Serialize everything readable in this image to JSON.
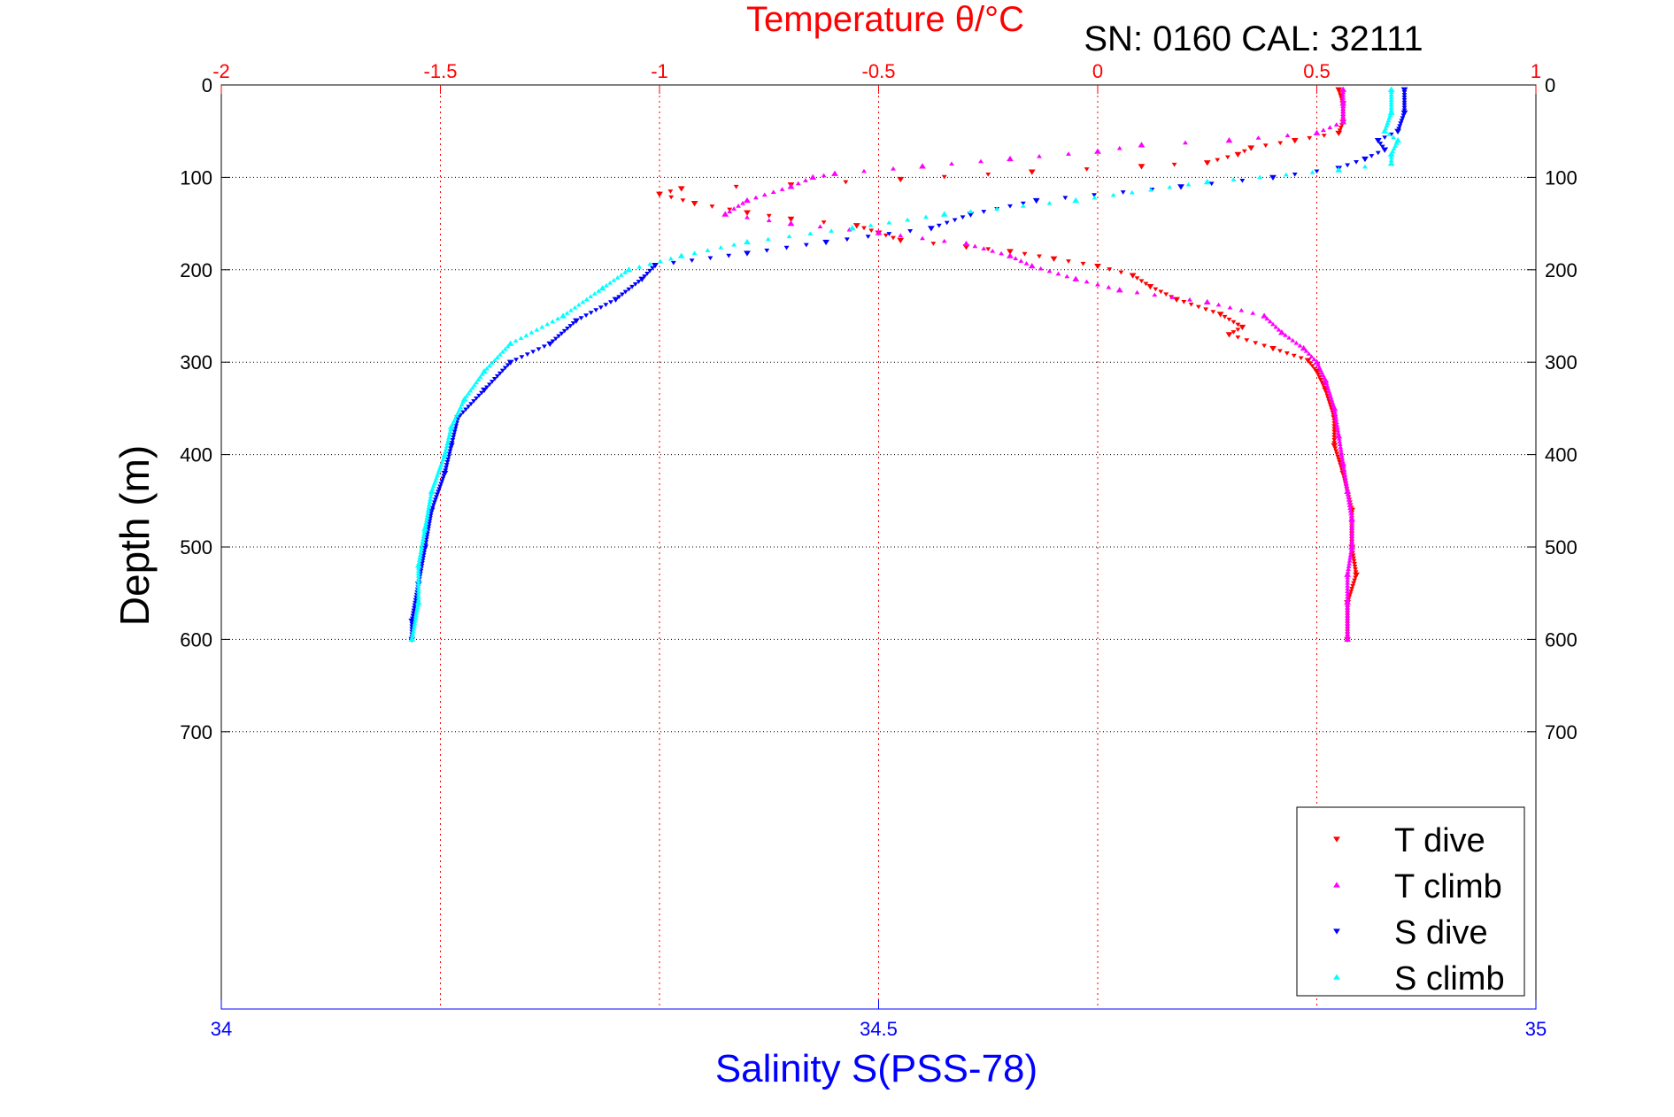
{
  "chart_data": {
    "type": "scatter",
    "title": "Temperature θ/°C",
    "subtitle": "SN: 0160  CAL: 32111",
    "ylabel": "Depth (m)",
    "x_top_label": "Temperature θ/°C",
    "x_bottom_label": "Salinity S(PSS-78)",
    "temperature_range": [
      -2,
      1
    ],
    "temperature_ticks": [
      "-2",
      "-1.5",
      "-1",
      "-0.5",
      "0",
      "0.5",
      "1"
    ],
    "salinity_range": [
      34,
      35
    ],
    "salinity_ticks": [
      "34",
      "34.5",
      "35"
    ],
    "ylim": [
      0,
      1000
    ],
    "y_ticks": [
      "0",
      "100",
      "200",
      "300",
      "400",
      "500",
      "600",
      "700"
    ],
    "grid": true,
    "legend_position": "bottom-right",
    "series": [
      {
        "name": "T dive",
        "axis": "temperature",
        "color": "#ff0000",
        "marker": "triangle-down",
        "points": [
          [
            0.55,
            5
          ],
          [
            0.56,
            20
          ],
          [
            0.56,
            40
          ],
          [
            0.55,
            52
          ],
          [
            0.45,
            60
          ],
          [
            0.35,
            68
          ],
          [
            0.32,
            75
          ],
          [
            0.25,
            84
          ],
          [
            0.1,
            88
          ],
          [
            -0.15,
            94
          ],
          [
            -0.45,
            102
          ],
          [
            -0.7,
            108
          ],
          [
            -0.95,
            112
          ],
          [
            -1.0,
            118
          ],
          [
            -0.92,
            128
          ],
          [
            -0.8,
            138
          ],
          [
            -0.7,
            145
          ],
          [
            -0.55,
            152
          ],
          [
            -0.5,
            160
          ],
          [
            -0.45,
            168
          ],
          [
            -0.3,
            175
          ],
          [
            -0.2,
            180
          ],
          [
            -0.1,
            188
          ],
          [
            0.0,
            196
          ],
          [
            0.08,
            206
          ],
          [
            0.12,
            218
          ],
          [
            0.18,
            232
          ],
          [
            0.28,
            248
          ],
          [
            0.33,
            262
          ],
          [
            0.3,
            270
          ],
          [
            0.4,
            285
          ],
          [
            0.48,
            298
          ],
          [
            0.5,
            310
          ],
          [
            0.52,
            330
          ],
          [
            0.54,
            360
          ],
          [
            0.54,
            390
          ],
          [
            0.56,
            420
          ],
          [
            0.58,
            460
          ],
          [
            0.58,
            500
          ],
          [
            0.59,
            530
          ],
          [
            0.57,
            560
          ],
          [
            0.57,
            600
          ]
        ]
      },
      {
        "name": "T climb",
        "axis": "temperature",
        "color": "#ff00ff",
        "marker": "triangle-up",
        "points": [
          [
            0.56,
            5
          ],
          [
            0.56,
            20
          ],
          [
            0.56,
            40
          ],
          [
            0.5,
            52
          ],
          [
            0.3,
            60
          ],
          [
            0.1,
            65
          ],
          [
            0.0,
            72
          ],
          [
            -0.2,
            80
          ],
          [
            -0.4,
            88
          ],
          [
            -0.6,
            96
          ],
          [
            -0.65,
            100
          ],
          [
            -0.7,
            110
          ],
          [
            -0.8,
            125
          ],
          [
            -0.85,
            140
          ],
          [
            -0.7,
            150
          ],
          [
            -0.5,
            160
          ],
          [
            -0.3,
            172
          ],
          [
            -0.2,
            185
          ],
          [
            -0.15,
            196
          ],
          [
            -0.05,
            210
          ],
          [
            0.05,
            222
          ],
          [
            0.25,
            235
          ],
          [
            0.38,
            250
          ],
          [
            0.42,
            268
          ],
          [
            0.47,
            285
          ],
          [
            0.5,
            300
          ],
          [
            0.52,
            320
          ],
          [
            0.54,
            350
          ],
          [
            0.55,
            380
          ],
          [
            0.56,
            410
          ],
          [
            0.57,
            440
          ],
          [
            0.58,
            470
          ],
          [
            0.58,
            500
          ],
          [
            0.57,
            530
          ],
          [
            0.57,
            560
          ],
          [
            0.57,
            600
          ]
        ]
      },
      {
        "name": "S dive",
        "axis": "salinity",
        "color": "#0000ff",
        "marker": "triangle-down",
        "points": [
          [
            34.9,
            5
          ],
          [
            34.9,
            30
          ],
          [
            34.895,
            50
          ],
          [
            34.88,
            60
          ],
          [
            34.885,
            70
          ],
          [
            34.87,
            80
          ],
          [
            34.85,
            90
          ],
          [
            34.8,
            100
          ],
          [
            34.73,
            110
          ],
          [
            34.62,
            125
          ],
          [
            34.57,
            140
          ],
          [
            34.54,
            155
          ],
          [
            34.46,
            170
          ],
          [
            34.4,
            182
          ],
          [
            34.33,
            195
          ],
          [
            34.32,
            210
          ],
          [
            34.3,
            232
          ],
          [
            34.27,
            255
          ],
          [
            34.25,
            280
          ],
          [
            34.22,
            300
          ],
          [
            34.2,
            330
          ],
          [
            34.18,
            360
          ],
          [
            34.175,
            390
          ],
          [
            34.17,
            420
          ],
          [
            34.16,
            460
          ],
          [
            34.155,
            500
          ],
          [
            34.15,
            540
          ],
          [
            34.145,
            580
          ],
          [
            34.145,
            600
          ]
        ]
      },
      {
        "name": "S climb",
        "axis": "salinity",
        "color": "#00ffff",
        "marker": "triangle-up",
        "points": [
          [
            34.89,
            5
          ],
          [
            34.89,
            30
          ],
          [
            34.885,
            50
          ],
          [
            34.895,
            60
          ],
          [
            34.89,
            75
          ],
          [
            34.89,
            85
          ],
          [
            34.85,
            92
          ],
          [
            34.75,
            105
          ],
          [
            34.65,
            125
          ],
          [
            34.55,
            140
          ],
          [
            34.48,
            155
          ],
          [
            34.4,
            170
          ],
          [
            34.35,
            185
          ],
          [
            34.31,
            200
          ],
          [
            34.29,
            220
          ],
          [
            34.26,
            250
          ],
          [
            34.22,
            280
          ],
          [
            34.2,
            310
          ],
          [
            34.185,
            340
          ],
          [
            34.175,
            370
          ],
          [
            34.17,
            400
          ],
          [
            34.16,
            440
          ],
          [
            34.155,
            480
          ],
          [
            34.15,
            520
          ],
          [
            34.15,
            560
          ],
          [
            34.145,
            600
          ]
        ]
      }
    ]
  }
}
